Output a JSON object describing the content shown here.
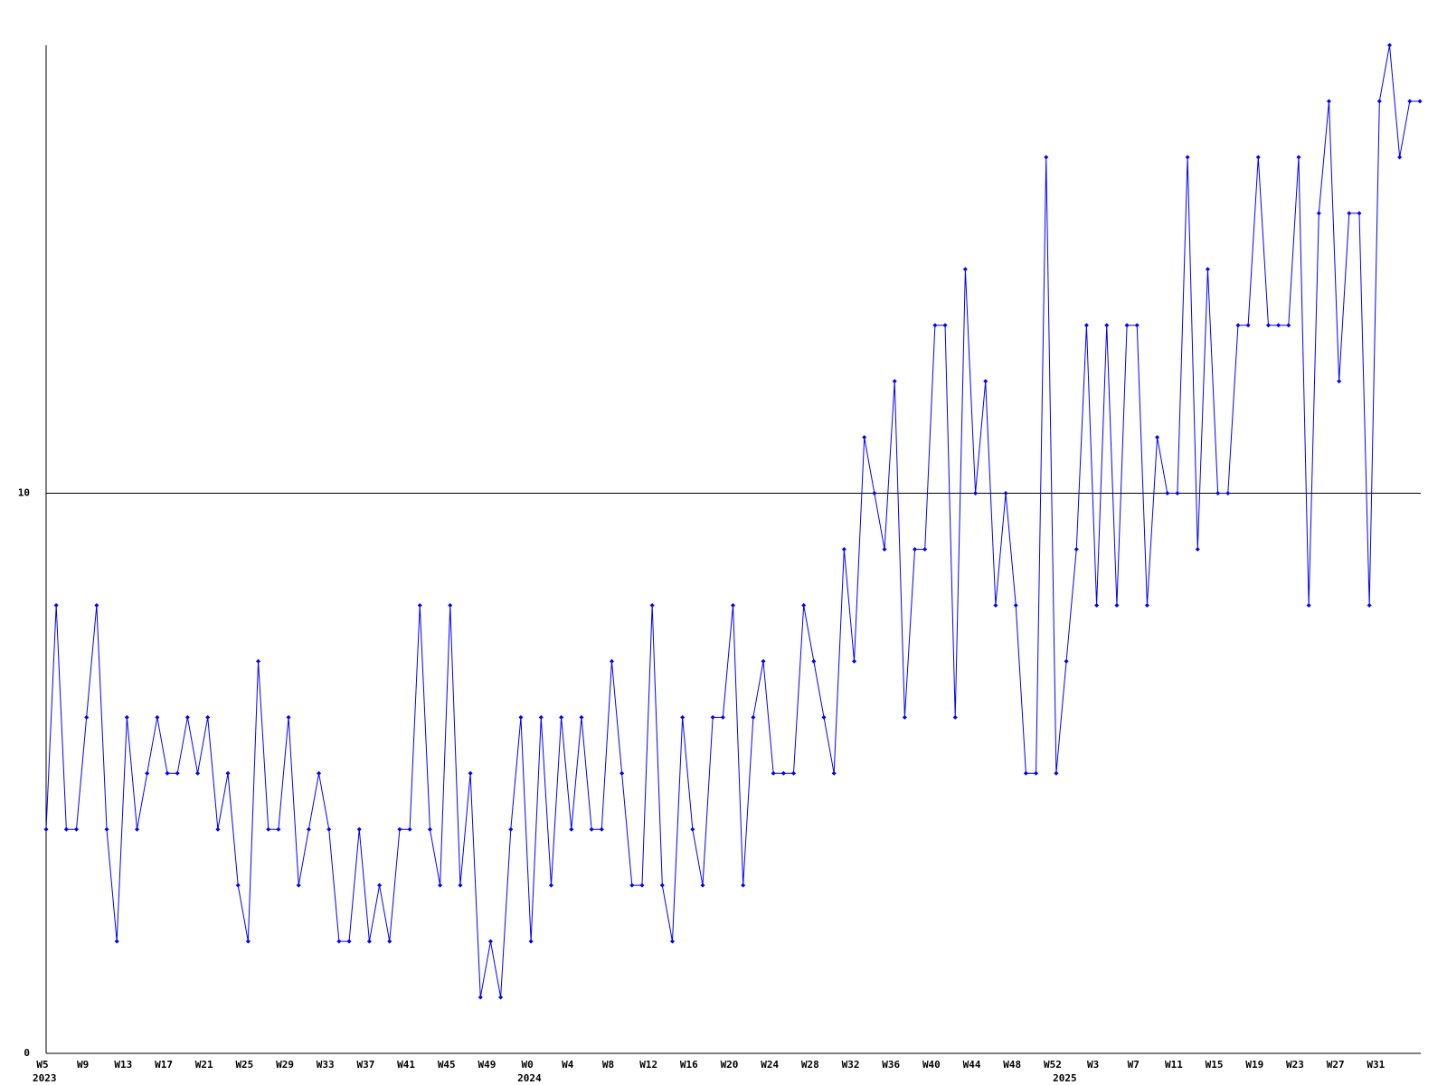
{
  "chart_data": {
    "type": "line",
    "ylim": [
      0,
      18
    ],
    "yticks": [
      0,
      10
    ],
    "grid": true,
    "categories": [
      "W5",
      null,
      null,
      null,
      "W9",
      null,
      null,
      null,
      "W13",
      null,
      null,
      null,
      "W17",
      null,
      null,
      null,
      "W21",
      null,
      null,
      null,
      "W25",
      null,
      null,
      null,
      "W29",
      null,
      null,
      null,
      "W33",
      null,
      null,
      null,
      "W37",
      null,
      null,
      null,
      "W41",
      null,
      null,
      null,
      "W45",
      null,
      null,
      null,
      "W49",
      null,
      null,
      null,
      "W0",
      null,
      null,
      null,
      "W4",
      null,
      null,
      null,
      "W8",
      null,
      null,
      null,
      "W12",
      null,
      null,
      null,
      "W16",
      null,
      null,
      null,
      "W20",
      null,
      null,
      null,
      "W24",
      null,
      null,
      null,
      "W28",
      null,
      null,
      null,
      "W32",
      null,
      null,
      null,
      "W36",
      null,
      null,
      null,
      "W40",
      null,
      null,
      null,
      "W44",
      null,
      null,
      null,
      "W48",
      null,
      null,
      null,
      "W52",
      null,
      null,
      null,
      "W3",
      null,
      null,
      null,
      "W7",
      null,
      null,
      null,
      "W11",
      null,
      null,
      null,
      "W15",
      null,
      null,
      null,
      "W19",
      null,
      null,
      null,
      "W23",
      null,
      null,
      null,
      "W27",
      null,
      null,
      null,
      "W31",
      null,
      null,
      null,
      null
    ],
    "category_groups": [
      {
        "index": 0,
        "label": "2023"
      },
      {
        "index": 48,
        "label": "2024"
      },
      {
        "index": 101,
        "label": "2025"
      }
    ],
    "series": [
      {
        "color": "#0000ff",
        "values": [
          4,
          8,
          4,
          4,
          6,
          8,
          4,
          2,
          6,
          4,
          5,
          6,
          5,
          5,
          6,
          5,
          6,
          4,
          5,
          3,
          2,
          7,
          4,
          4,
          6,
          3,
          4,
          5,
          4,
          2,
          2,
          4,
          2,
          3,
          2,
          4,
          4,
          8,
          4,
          3,
          8,
          3,
          5,
          1,
          2,
          1,
          4,
          6,
          2,
          6,
          3,
          6,
          4,
          6,
          4,
          4,
          7,
          5,
          3,
          3,
          8,
          3,
          2,
          6,
          4,
          3,
          6,
          6,
          8,
          3,
          6,
          7,
          5,
          5,
          5,
          8,
          7,
          6,
          5,
          9,
          7,
          11,
          10,
          9,
          12,
          6,
          9,
          9,
          13,
          13,
          6,
          14,
          10,
          12,
          8,
          10,
          8,
          5,
          5,
          16,
          5,
          7,
          9,
          13,
          8,
          13,
          8,
          13,
          13,
          8,
          11,
          10,
          10,
          16,
          9,
          14,
          10,
          10,
          13,
          13,
          16,
          13,
          13,
          13,
          16,
          8,
          15,
          17,
          12,
          15,
          15,
          8,
          17,
          18,
          16,
          17,
          17
        ]
      }
    ]
  }
}
